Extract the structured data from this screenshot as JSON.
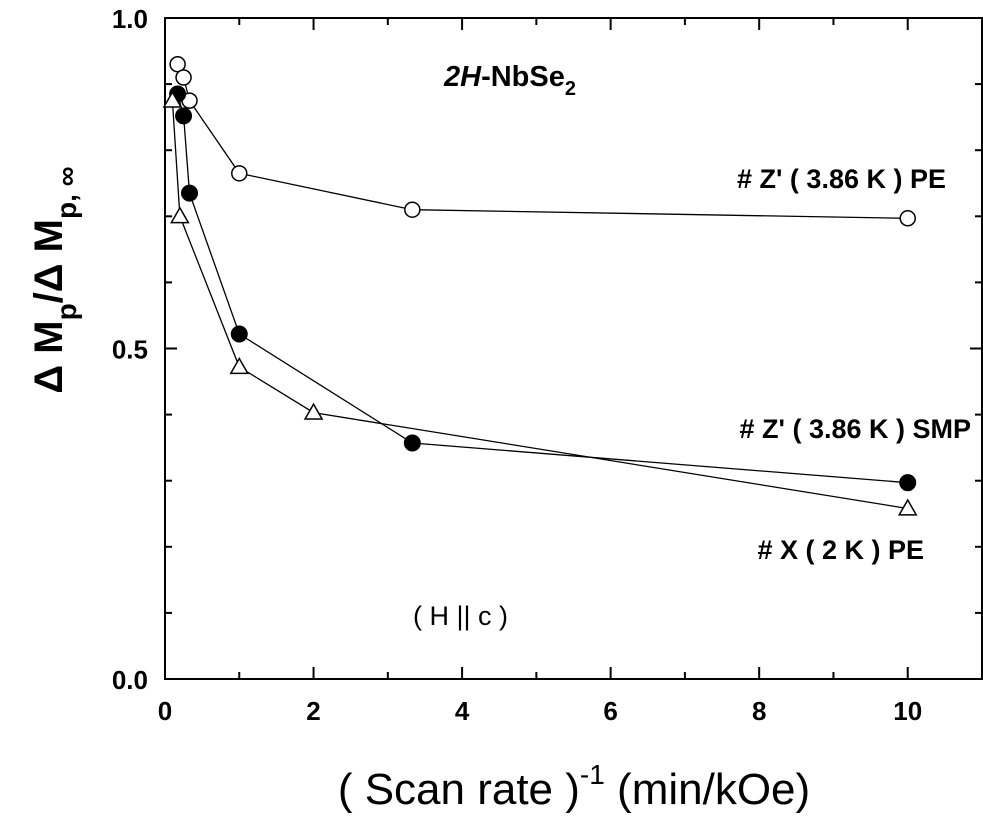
{
  "chart_data": {
    "type": "scatter",
    "title_main": "2H",
    "title_rest": "-NbSe",
    "title_sub": "2",
    "annotation": "( H || c )",
    "xlabel_pre": "( Scan rate )",
    "xlabel_sup": "-1",
    "xlabel_post": " (min/kOe)",
    "ylabel_a": "Δ M",
    "ylabel_sub1": "p",
    "ylabel_b": "/Δ M",
    "ylabel_sub2": "p, ∞",
    "xlim": [
      0,
      11
    ],
    "ylim": [
      0.0,
      1.0
    ],
    "x_ticks": [
      0,
      2,
      4,
      6,
      8,
      10
    ],
    "x_tick_labels": [
      "0",
      "2",
      "4",
      "6",
      "8",
      "10"
    ],
    "y_ticks": [
      0.0,
      0.5,
      1.0
    ],
    "y_tick_labels": [
      "0.0",
      "0.5",
      "1.0"
    ],
    "series": [
      {
        "name": "# Z' ( 3.86 K ) PE",
        "marker": "open-circle",
        "x": [
          0.17,
          0.25,
          0.33,
          1.0,
          3.33,
          10.0
        ],
        "y": [
          0.93,
          0.91,
          0.875,
          0.765,
          0.71,
          0.697
        ]
      },
      {
        "name": "# Z' ( 3.86 K ) SMP",
        "marker": "filled-circle",
        "x": [
          0.17,
          0.25,
          0.33,
          1.0,
          3.33,
          10.0
        ],
        "y": [
          0.885,
          0.852,
          0.735,
          0.522,
          0.357,
          0.297
        ]
      },
      {
        "name": "# X ( 2 K ) PE",
        "marker": "open-triangle",
        "x": [
          0.1,
          0.2,
          1.0,
          2.0,
          10.0
        ],
        "y": [
          0.875,
          0.7,
          0.472,
          0.403,
          0.258
        ]
      }
    ]
  }
}
